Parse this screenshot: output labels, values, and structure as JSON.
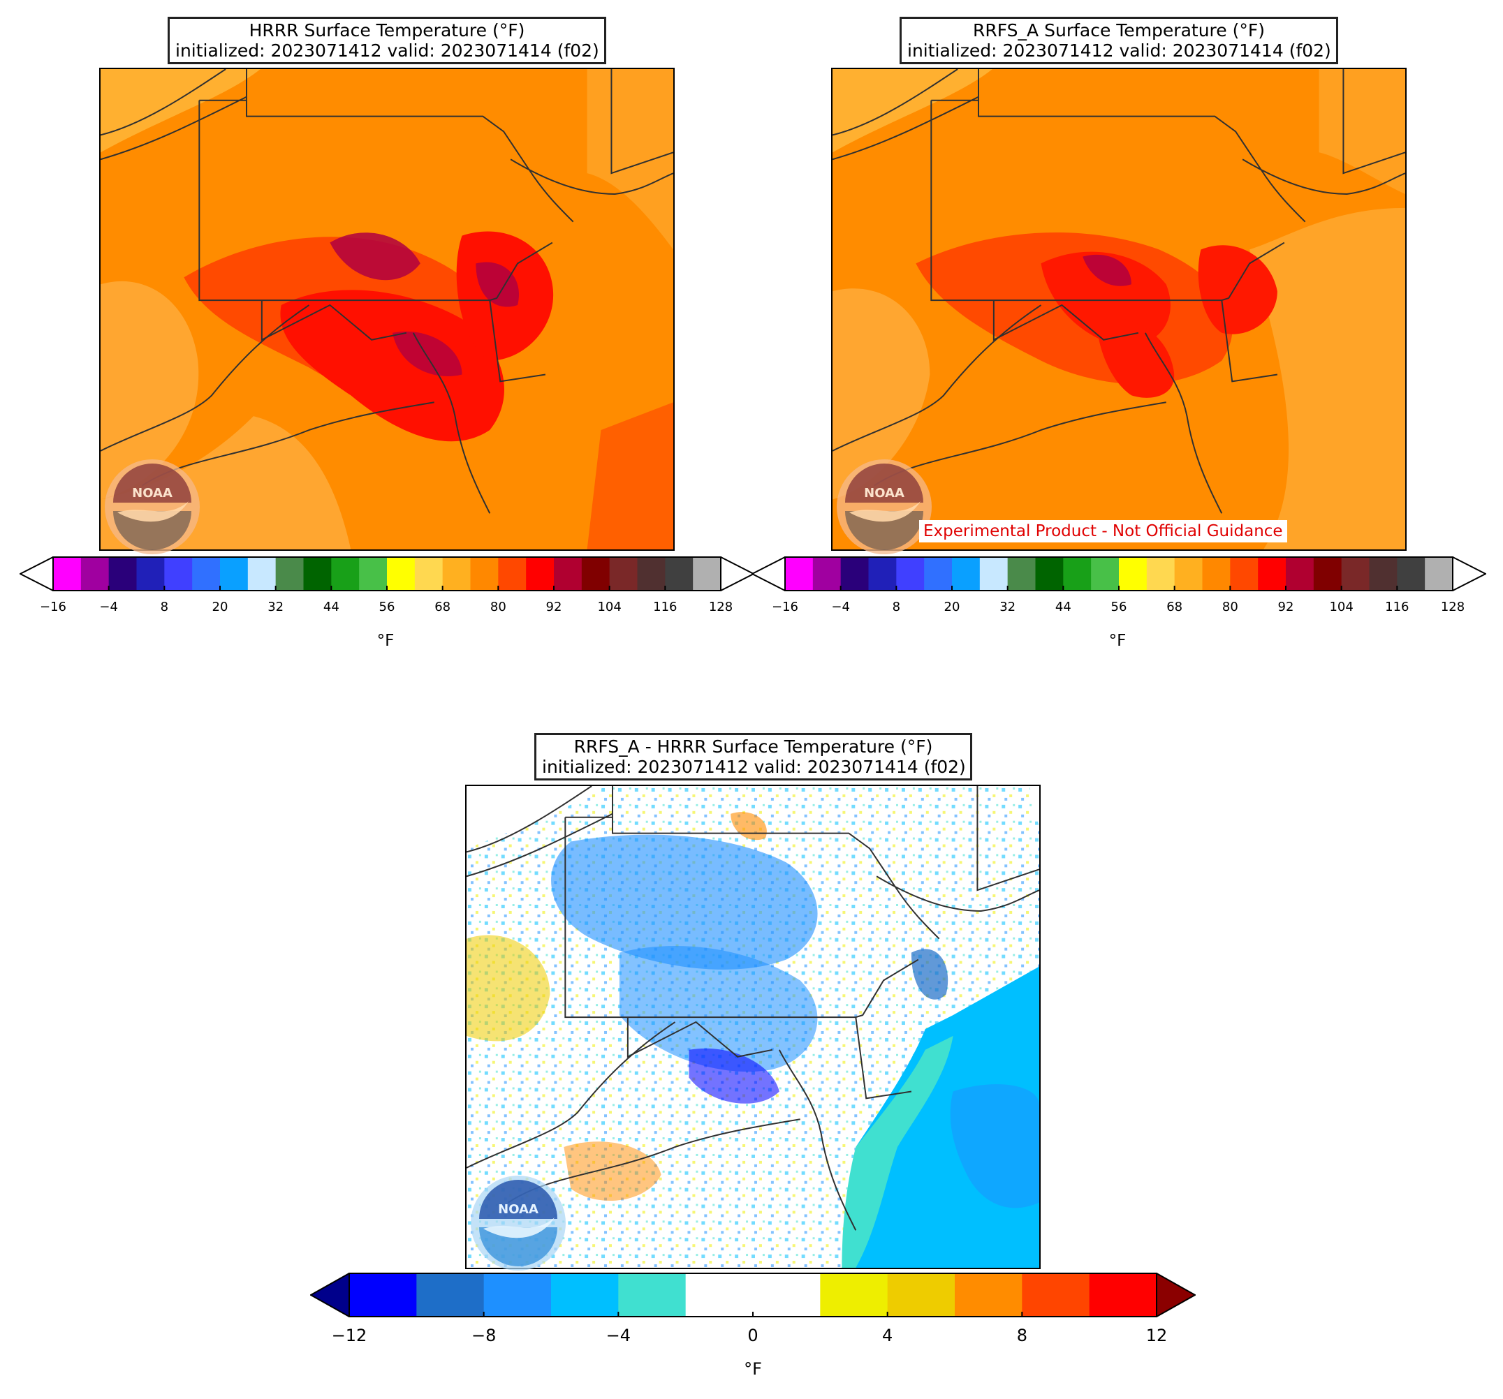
{
  "panels": [
    {
      "id": "hrrr",
      "title_line1": "HRRR Surface Temperature (°F)",
      "title_line2": "initialized: 2023071412 valid: 2023071414 (f02)",
      "colorbar": {
        "ticks": [
          "−16",
          "−4",
          "8",
          "20",
          "32",
          "44",
          "56",
          "68",
          "80",
          "92",
          "104",
          "116",
          "128"
        ],
        "unit": "°F",
        "colors": [
          "#ff00ff",
          "#a000a0",
          "#2a007a",
          "#2020b8",
          "#4040ff",
          "#3070ff",
          "#0aa0ff",
          "#c8e8ff",
          "#4a8a4a",
          "#006400",
          "#18a018",
          "#48c048",
          "#ffff00",
          "#ffd850",
          "#ffb020",
          "#ff8800",
          "#ff4800",
          "#ff0000",
          "#b00030",
          "#800000",
          "#7a2828",
          "#503030",
          "#404040",
          "#b0b0b0"
        ]
      },
      "logo_text": "NOAA"
    },
    {
      "id": "rrfs",
      "title_line1": "RRFS_A Surface Temperature (°F)",
      "title_line2": "initialized: 2023071412 valid: 2023071414 (f02)",
      "colorbar": {
        "ticks": [
          "−16",
          "−4",
          "8",
          "20",
          "32",
          "44",
          "56",
          "68",
          "80",
          "92",
          "104",
          "116",
          "128"
        ],
        "unit": "°F",
        "colors": [
          "#ff00ff",
          "#a000a0",
          "#2a007a",
          "#2020b8",
          "#4040ff",
          "#3070ff",
          "#0aa0ff",
          "#c8e8ff",
          "#4a8a4a",
          "#006400",
          "#18a018",
          "#48c048",
          "#ffff00",
          "#ffd850",
          "#ffb020",
          "#ff8800",
          "#ff4800",
          "#ff0000",
          "#b00030",
          "#800000",
          "#7a2828",
          "#503030",
          "#404040",
          "#b0b0b0"
        ]
      },
      "disclaimer": "Experimental Product - Not Official Guidance",
      "logo_text": "NOAA"
    },
    {
      "id": "diff",
      "title_line1": "RRFS_A - HRRR Surface Temperature (°F)",
      "title_line2": "initialized: 2023071412 valid: 2023071414 (f02)",
      "colorbar": {
        "ticks": [
          "−12",
          "−8",
          "−4",
          "0",
          "4",
          "8",
          "12"
        ],
        "unit": "°F",
        "colors": [
          "#0000ff",
          "#1e6ec8",
          "#1e90ff",
          "#00bfff",
          "#40e0d0",
          "#ffffff",
          "#ffffff",
          "#eeee00",
          "#eecc00",
          "#ff8c00",
          "#ff4500",
          "#ff0000"
        ],
        "under_color": "#00008b",
        "over_color": "#8b0000"
      },
      "logo_text": "NOAA"
    }
  ]
}
